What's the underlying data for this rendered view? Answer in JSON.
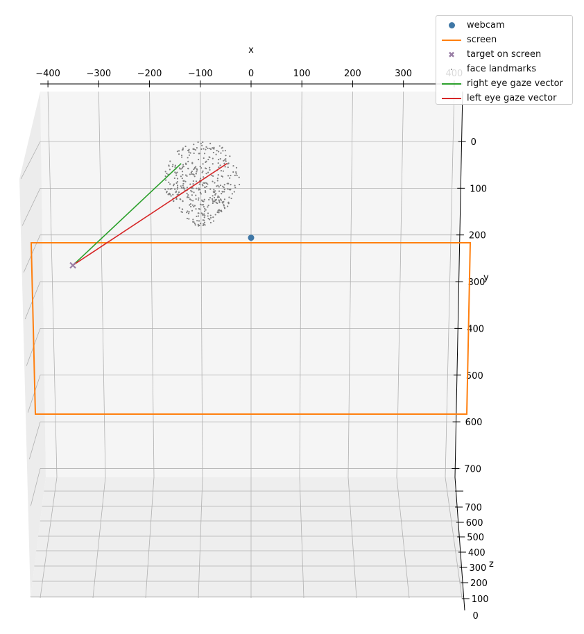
{
  "chart_data": {
    "type": "scatter",
    "title": "",
    "xlabel": "x",
    "ylabel": "y",
    "zlabel": "z",
    "x_ticks": [
      -400,
      -300,
      -200,
      -100,
      0,
      100,
      200,
      300,
      400
    ],
    "y_ticks": [
      0,
      100,
      200,
      300,
      400,
      500,
      600,
      700
    ],
    "z_ticks": [
      0,
      100,
      200,
      300,
      400,
      500,
      600,
      700
    ],
    "xlim": [
      -410,
      415
    ],
    "ylim": [
      -120,
      720
    ],
    "grid": true,
    "legend_position": "top-right",
    "series": [
      {
        "name": "webcam",
        "kind": "point",
        "color": "#3f77a6",
        "points": [
          [
            0,
            200,
            0
          ]
        ]
      },
      {
        "name": "screen",
        "kind": "polygon",
        "color": "#ff7f0e",
        "points": [
          [
            -432,
            210,
            0
          ],
          [
            432,
            210,
            0
          ],
          [
            432,
            573,
            0
          ],
          [
            -432,
            573,
            0
          ]
        ]
      },
      {
        "name": "target on screen",
        "kind": "marker",
        "color": "#9a7fa6",
        "points": [
          [
            -355,
            265,
            0
          ]
        ]
      },
      {
        "name": "face landmarks",
        "kind": "cloud",
        "color": "#808080",
        "center": [
          -97,
          90,
          600
        ],
        "extent": [
          150,
          170
        ]
      },
      {
        "name": "right eye gaze vector",
        "kind": "line",
        "color": "#2ca02c",
        "points": [
          [
            -125,
            50,
            600
          ],
          [
            -355,
            265,
            0
          ]
        ]
      },
      {
        "name": "left eye gaze vector",
        "kind": "line",
        "color": "#d62728",
        "points": [
          [
            -65,
            50,
            600
          ],
          [
            -355,
            265,
            0
          ]
        ]
      }
    ]
  },
  "legend": {
    "items": [
      {
        "label": "webcam",
        "color": "#3f77a6",
        "symbol": "dot"
      },
      {
        "label": "screen",
        "color": "#ff7f0e",
        "symbol": "line"
      },
      {
        "label": "target on screen",
        "color": "#9a7fa6",
        "symbol": "x"
      },
      {
        "label": "face landmarks",
        "color": "#808080",
        "symbol": "point"
      },
      {
        "label": "right eye gaze vector",
        "color": "#2ca02c",
        "symbol": "line"
      },
      {
        "label": "left eye gaze vector",
        "color": "#d62728",
        "symbol": "line"
      }
    ]
  }
}
